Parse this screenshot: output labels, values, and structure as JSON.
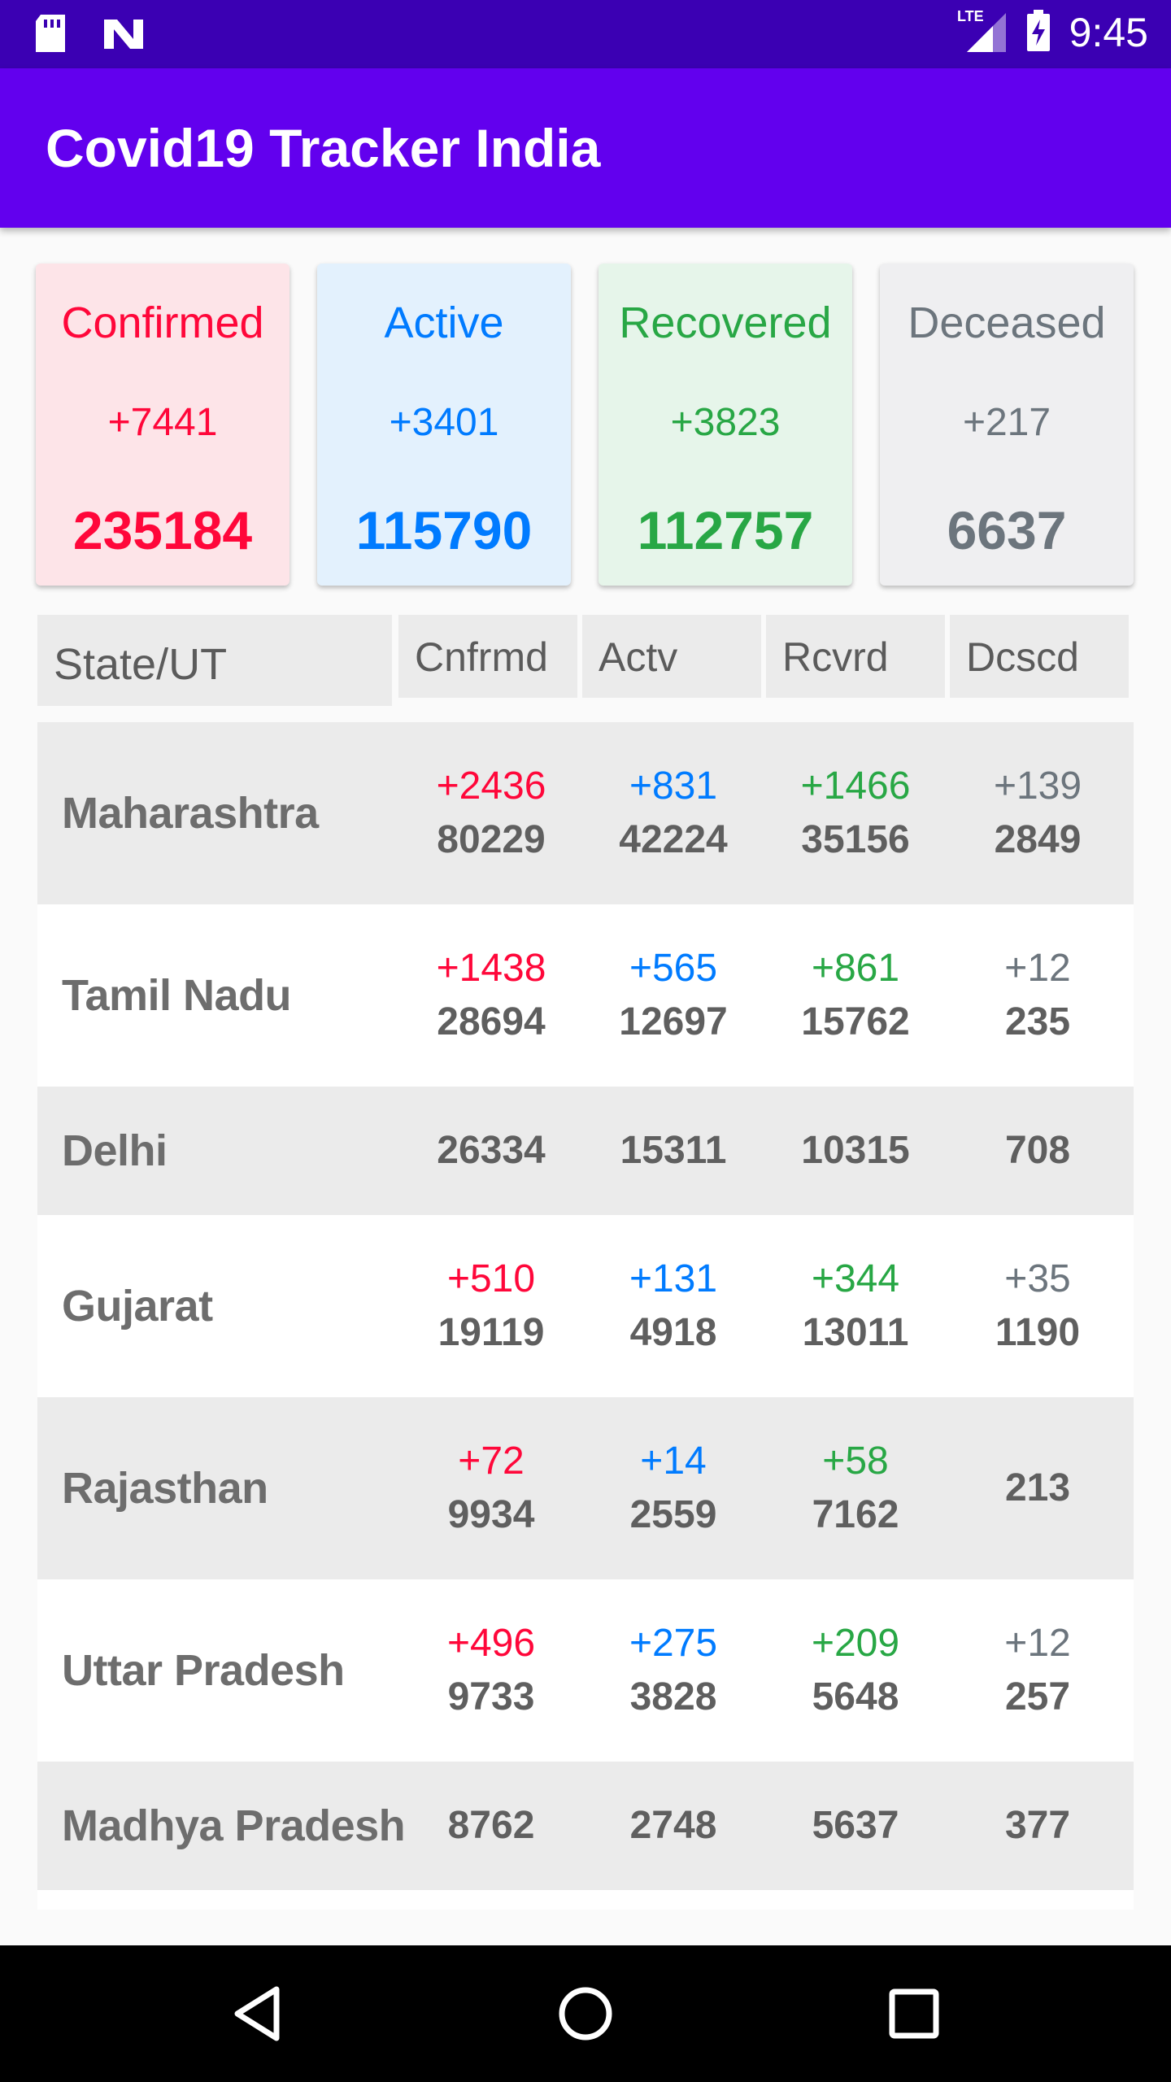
{
  "status_bar": {
    "time": "9:45",
    "network": "LTE",
    "icons": [
      "sd-card-icon",
      "n-logo-icon",
      "signal-icon",
      "battery-charging-icon"
    ]
  },
  "app_bar": {
    "title": "Covid19 Tracker India"
  },
  "summary": [
    {
      "title": "Confirmed",
      "delta": "+7441",
      "total": "235184",
      "color": "#ff073a"
    },
    {
      "title": "Active",
      "delta": "+3401",
      "total": "115790",
      "color": "#007bff"
    },
    {
      "title": "Recovered",
      "delta": "+3823",
      "total": "112757",
      "color": "#28a745"
    },
    {
      "title": "Deceased",
      "delta": "+217",
      "total": "6637",
      "color": "#6c757d"
    }
  ],
  "table": {
    "headers": {
      "state": "State/UT",
      "confirmed": "Cnfrmd",
      "active": "Actv",
      "recovered": "Rcvrd",
      "deceased": "Dcscd"
    },
    "rows": [
      {
        "state": "Maharashtra",
        "confirmed_delta": "+2436",
        "confirmed": "80229",
        "active_delta": "+831",
        "active": "42224",
        "recovered_delta": "+1466",
        "recovered": "35156",
        "deceased_delta": "+139",
        "deceased": "2849"
      },
      {
        "state": "Tamil Nadu",
        "confirmed_delta": "+1438",
        "confirmed": "28694",
        "active_delta": "+565",
        "active": "12697",
        "recovered_delta": "+861",
        "recovered": "15762",
        "deceased_delta": "+12",
        "deceased": "235"
      },
      {
        "state": "Delhi",
        "confirmed": "26334",
        "active": "15311",
        "recovered": "10315",
        "deceased": "708"
      },
      {
        "state": "Gujarat",
        "confirmed_delta": "+510",
        "confirmed": "19119",
        "active_delta": "+131",
        "active": "4918",
        "recovered_delta": "+344",
        "recovered": "13011",
        "deceased_delta": "+35",
        "deceased": "1190"
      },
      {
        "state": "Rajasthan",
        "confirmed_delta": "+72",
        "confirmed": "9934",
        "active_delta": "+14",
        "active": "2559",
        "recovered_delta": "+58",
        "recovered": "7162",
        "deceased": "213"
      },
      {
        "state": "Uttar Pradesh",
        "confirmed_delta": "+496",
        "confirmed": "9733",
        "active_delta": "+275",
        "active": "3828",
        "recovered_delta": "+209",
        "recovered": "5648",
        "deceased_delta": "+12",
        "deceased": "257"
      },
      {
        "state": "Madhya Pradesh",
        "confirmed": "8762",
        "active": "2748",
        "recovered": "5637",
        "deceased": "377"
      }
    ]
  },
  "nav_bar": {
    "buttons": [
      "back-icon",
      "home-icon",
      "recents-icon"
    ]
  }
}
